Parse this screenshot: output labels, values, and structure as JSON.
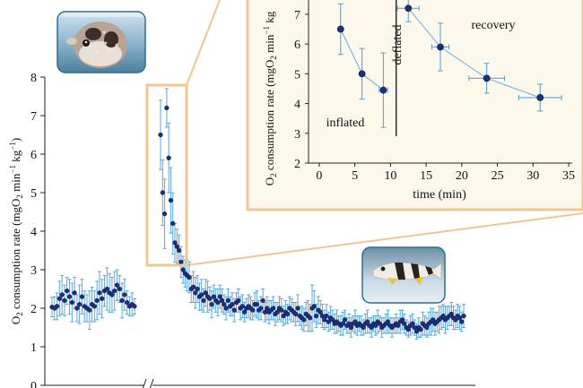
{
  "chart_data": [
    {
      "type": "scatter",
      "panel": "main",
      "title": "",
      "ylabel": {
        "main": "O",
        "sub1": "2",
        "mid": " consumption rate (mgO",
        "sub2": "2",
        "unit": " min",
        "sup1": "−1",
        "unit2": " kg",
        "sup2": "−1",
        "close": ")"
      },
      "ylim": [
        0,
        8
      ],
      "yticks": [
        "0",
        "1",
        "2",
        "3",
        "4",
        "5",
        "6",
        "7",
        "8"
      ],
      "axis_break": true,
      "error_bars": true,
      "series": [
        {
          "segment": "baseline",
          "x": [
            1,
            2,
            3,
            4,
            5,
            6,
            7,
            8,
            9,
            10,
            11,
            12,
            13,
            14,
            15,
            16,
            17,
            18,
            19,
            20,
            21,
            22,
            23,
            24,
            25,
            26,
            27,
            28,
            29,
            30,
            31,
            32,
            33,
            34
          ],
          "y": [
            2.03,
            2.0,
            2.05,
            2.25,
            2.35,
            2.2,
            2.45,
            2.3,
            2.15,
            2.4,
            2.0,
            2.1,
            2.3,
            2.05,
            2.0,
            1.95,
            2.1,
            2.05,
            2.2,
            2.4,
            2.25,
            2.45,
            2.5,
            2.4,
            2.35,
            2.45,
            2.6,
            2.5,
            2.2,
            2.35,
            2.15,
            2.05,
            2.1,
            2.05
          ],
          "err": [
            0.25,
            0.3,
            0.35,
            0.45,
            0.5,
            0.4,
            0.35,
            0.45,
            0.5,
            0.4,
            0.35,
            0.5,
            0.45,
            0.4,
            0.35,
            0.5,
            0.45,
            0.4,
            0.5,
            0.55,
            0.5,
            0.4,
            0.55,
            0.5,
            0.45,
            0.5,
            0.4,
            0.35,
            0.45,
            0.4,
            0.3,
            0.25,
            0.3,
            0.2
          ]
        },
        {
          "segment": "after-inflation",
          "x": [
            100,
            101,
            102,
            103,
            104,
            105,
            106,
            107,
            108,
            109,
            110,
            111,
            112,
            113,
            114,
            115,
            116,
            117,
            118,
            119,
            120,
            121,
            122,
            123,
            124,
            125,
            126,
            127,
            128,
            129,
            130,
            131,
            132,
            133,
            134,
            135,
            136,
            137,
            138,
            139,
            140,
            141,
            142,
            143,
            144,
            145,
            146,
            147,
            148,
            149,
            150,
            151,
            152,
            153,
            154,
            155,
            156,
            157,
            158,
            159,
            160,
            161,
            162,
            163,
            164,
            165,
            166,
            167,
            168,
            169,
            170,
            171,
            172,
            173,
            174,
            175,
            176,
            177,
            178,
            179,
            180,
            181,
            182,
            183,
            184,
            185,
            186,
            187,
            188,
            189,
            190,
            191,
            192,
            193,
            194,
            195,
            196,
            197,
            198,
            199,
            200,
            201,
            202,
            203,
            204,
            205,
            206,
            207,
            208,
            209,
            210,
            211,
            212,
            213,
            214,
            215,
            216,
            217,
            218,
            219,
            220,
            221,
            222,
            223,
            224,
            225,
            226,
            227,
            228,
            229,
            230,
            231,
            232,
            233,
            234,
            235,
            236,
            237,
            238,
            239,
            240,
            241,
            242,
            243,
            244,
            245,
            246,
            247,
            248
          ],
          "y": [
            6.5,
            5.0,
            4.45,
            7.2,
            5.9,
            4.8,
            4.2,
            3.7,
            3.6,
            3.5,
            3.2,
            3.0,
            2.9,
            2.85,
            2.8,
            2.5,
            2.55,
            2.4,
            2.5,
            2.3,
            2.35,
            2.2,
            2.4,
            2.3,
            2.25,
            2.1,
            2.3,
            2.2,
            2.15,
            2.3,
            2.2,
            2.1,
            2.0,
            2.2,
            2.05,
            2.1,
            1.95,
            2.15,
            2.2,
            2.0,
            2.05,
            1.9,
            2.0,
            2.05,
            2.0,
            1.95,
            2.1,
            2.1,
            1.95,
            2.0,
            2.2,
            1.9,
            2.0,
            1.9,
            1.95,
            2.0,
            1.85,
            1.9,
            2.0,
            1.95,
            1.8,
            1.9,
            1.85,
            2.0,
            1.95,
            1.9,
            1.85,
            2.0,
            1.8,
            1.75,
            1.7,
            1.85,
            1.8,
            1.75,
            2.0,
            2.05,
            1.8,
            1.95,
            1.9,
            1.8,
            1.7,
            1.8,
            1.65,
            1.75,
            1.7,
            1.6,
            1.65,
            1.6,
            1.55,
            1.6,
            1.7,
            1.55,
            1.6,
            1.5,
            1.6,
            1.65,
            1.55,
            1.6,
            1.55,
            1.5,
            1.6,
            1.65,
            1.55,
            1.5,
            1.6,
            1.55,
            1.65,
            1.6,
            1.5,
            1.55,
            1.6,
            1.65,
            1.55,
            1.5,
            1.55,
            1.6,
            1.55,
            1.65,
            1.7,
            1.6,
            1.5,
            1.45,
            1.55,
            1.6,
            1.5,
            1.4,
            1.5,
            1.45,
            1.6,
            1.55,
            1.5,
            1.6,
            1.65,
            1.7,
            1.6,
            1.65,
            1.7,
            1.75,
            1.8,
            1.7,
            1.75,
            1.8,
            1.85,
            1.75,
            1.7,
            1.8,
            1.75,
            1.65,
            1.8
          ],
          "err": [
            0.9,
            0.85,
            0.9,
            0.5,
            0.9,
            0.85,
            0.8,
            0.5,
            0.45,
            0.4,
            0.4,
            0.35,
            0.35,
            0.4,
            0.4,
            0.35,
            0.4,
            0.4,
            0.35,
            0.35,
            0.4,
            0.3,
            0.35,
            0.4,
            0.3,
            0.35,
            0.3,
            0.3,
            0.35,
            0.3,
            0.3,
            0.25,
            0.3,
            0.3,
            0.25,
            0.3,
            0.3,
            0.25,
            0.3,
            0.3,
            0.3,
            0.25,
            0.25,
            0.3,
            0.3,
            0.25,
            0.3,
            0.35,
            0.25,
            0.3,
            0.3,
            0.25,
            0.3,
            0.3,
            0.25,
            0.3,
            0.3,
            0.25,
            0.3,
            0.3,
            0.25,
            0.3,
            0.25,
            0.3,
            0.3,
            0.25,
            0.3,
            0.35,
            0.25,
            0.3,
            0.3,
            0.3,
            0.4,
            0.35,
            0.6,
            0.4,
            0.3,
            0.35,
            0.3,
            0.3,
            0.25,
            0.3,
            0.25,
            0.3,
            0.25,
            0.25,
            0.3,
            0.2,
            0.25,
            0.3,
            0.25,
            0.2,
            0.25,
            0.25,
            0.2,
            0.3,
            0.25,
            0.2,
            0.25,
            0.2,
            0.25,
            0.3,
            0.2,
            0.25,
            0.2,
            0.25,
            0.3,
            0.2,
            0.25,
            0.2,
            0.25,
            0.3,
            0.2,
            0.25,
            0.2,
            0.25,
            0.2,
            0.3,
            0.25,
            0.25,
            0.2,
            0.2,
            0.25,
            0.25,
            0.2,
            0.2,
            0.25,
            0.2,
            0.3,
            0.25,
            0.25,
            0.3,
            0.35,
            0.3,
            0.3,
            0.25,
            0.35,
            0.3,
            0.3,
            0.35,
            0.3,
            0.25,
            0.3,
            0.3,
            0.25,
            0.3,
            0.3,
            0.25,
            0.3
          ]
        }
      ]
    },
    {
      "type": "scatter",
      "panel": "inset",
      "xlabel": "time (min)",
      "ylabel": {
        "main": "O",
        "sub1": "2",
        "mid": " consumption rate (mgO",
        "sub2": "2",
        "unit": " min",
        "sup1": "−1",
        "unit2": " kg"
      },
      "xlim": [
        -1.5,
        35.5
      ],
      "ylim": [
        2,
        7.6
      ],
      "xticks": [
        "0",
        "5",
        "10",
        "15",
        "20",
        "25",
        "30",
        "35"
      ],
      "yticks": [
        "2",
        "3",
        "4",
        "5",
        "6",
        "7"
      ],
      "annotations": {
        "inflated": "inflated",
        "deflated": "deflated",
        "recovery": "recovery"
      },
      "deflation_time": 10.8,
      "series": [
        {
          "segment": "inflated",
          "x": [
            3,
            6,
            9
          ],
          "y": [
            6.5,
            5.0,
            4.45
          ],
          "xerr": [
            0,
            0,
            0.6
          ],
          "yerr": [
            0.85,
            0.85,
            1.25
          ]
        },
        {
          "segment": "recovery",
          "x": [
            12.5,
            17,
            23.5,
            31
          ],
          "y": [
            7.2,
            5.9,
            4.85,
            4.2
          ],
          "xerr": [
            1.5,
            1.2,
            2.5,
            3.0
          ],
          "yerr": [
            0.45,
            0.8,
            0.5,
            0.45
          ]
        }
      ]
    }
  ],
  "photos": [
    {
      "name": "inflated-pufferfish-photo",
      "icon": "pufferfish-inflated"
    },
    {
      "name": "deflated-pufferfish-photo",
      "icon": "pufferfish-deflated"
    }
  ],
  "colors": {
    "marker_fill": "#1f2f7a",
    "marker_edge": "#0e1a55",
    "errorbar": "#5aa8d8",
    "connector": "#7cb8e2",
    "highlight": "#f2c596",
    "inset_bg": "#fdf8ec",
    "axis": "#222222"
  }
}
